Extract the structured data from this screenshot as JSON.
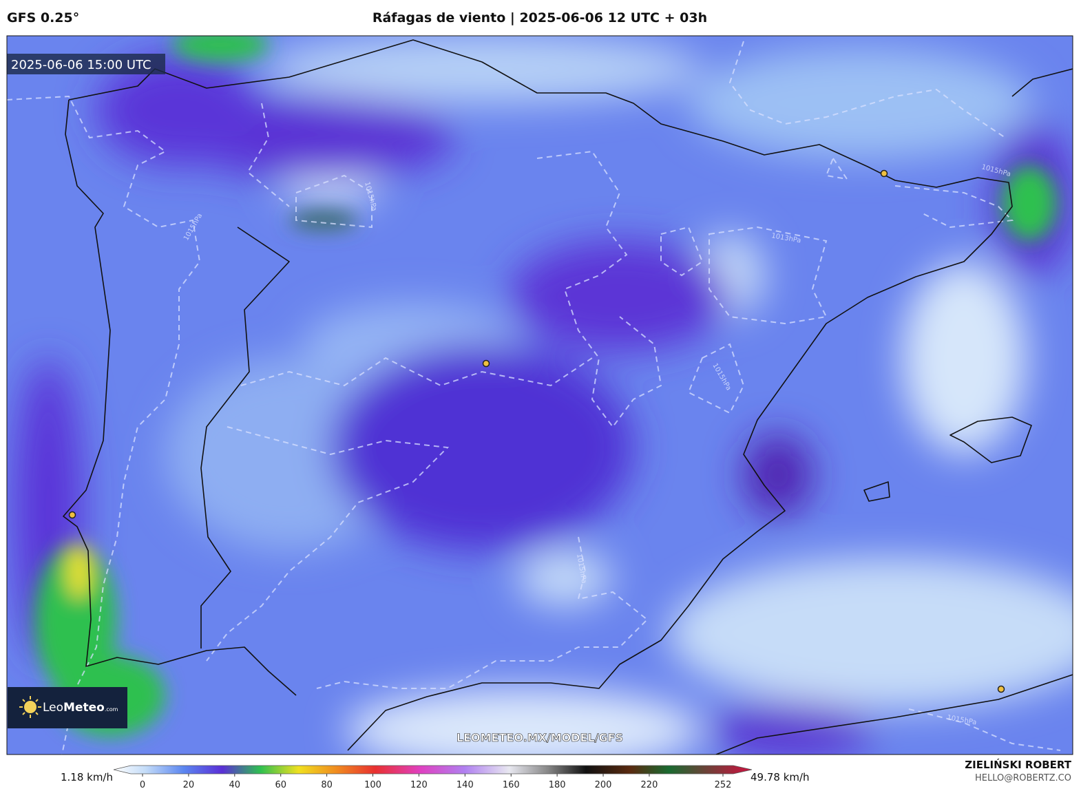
{
  "header": {
    "model": "GFS 0.25°",
    "title": "Ráfagas de viento | 2025-06-06 12 UTC + 03h"
  },
  "map": {
    "valid_time": "2025-06-06 15:00 UTC",
    "watermark": "LEOMETEO.MX/MODEL/GFS",
    "isobar_labels": [
      "1015hPa",
      "1015hPa",
      "1013hPa",
      "1015hPa",
      "1015hPa",
      "1015hPa",
      "1015hPa"
    ],
    "logo": {
      "brand": "Leo",
      "brand_bold": "Meteo",
      "suffix": ".com"
    }
  },
  "colorbar": {
    "min_label": "1.18 km/h",
    "max_label": "49.78 km/h",
    "ticks": [
      0,
      20,
      40,
      60,
      80,
      100,
      120,
      140,
      160,
      180,
      200,
      220,
      252
    ]
  },
  "credit": {
    "author": "ZIELIŃSKI ROBERT",
    "email": "HELLO@ROBERTZ.CO"
  }
}
